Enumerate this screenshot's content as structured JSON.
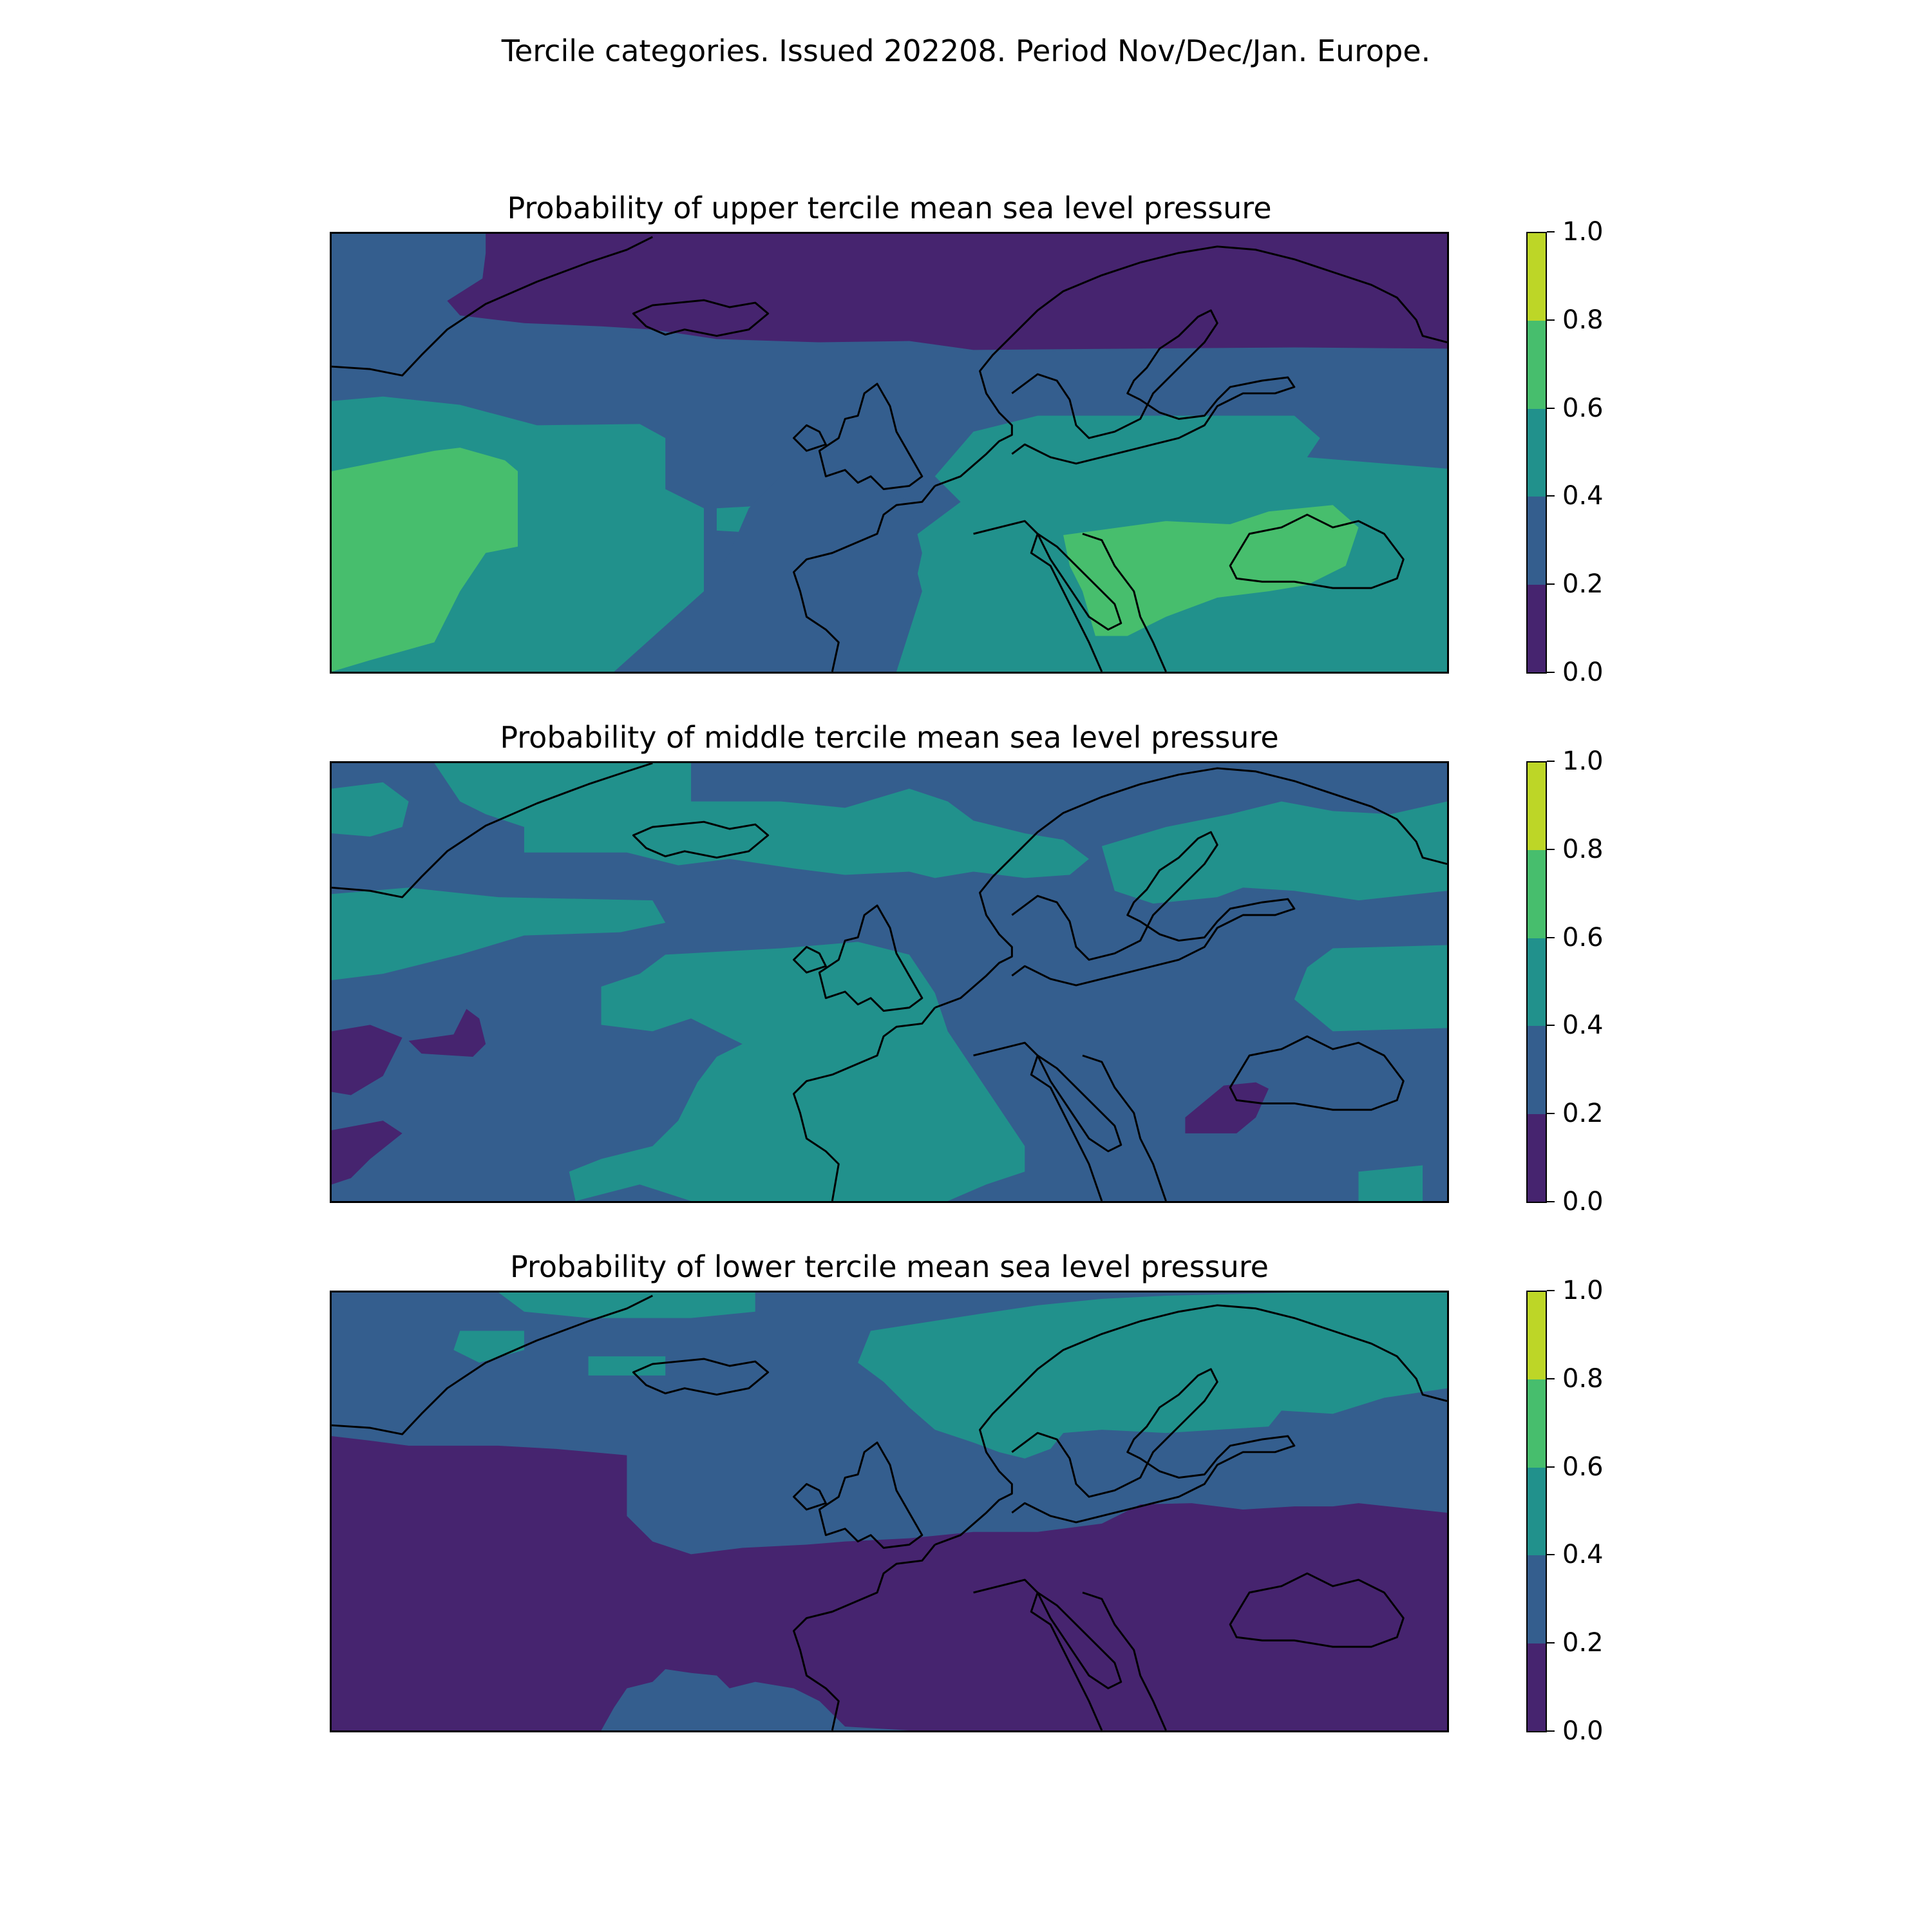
{
  "figure_title": "Tercile categories. Issued 202208. Period Nov/Dec/Jan. Europe.",
  "colorbar": {
    "levels": [
      0.0,
      0.2,
      0.4,
      0.6,
      0.8,
      1.0
    ],
    "tick_labels": [
      "0.0",
      "0.2",
      "0.4",
      "0.6",
      "0.8",
      "1.0"
    ],
    "colors": [
      "#46246f",
      "#345e8e",
      "#21918c",
      "#47be6d",
      "#bdd627"
    ]
  },
  "coastline_color": "#000000",
  "panels": [
    {
      "id": "upper",
      "title": "Probability of upper tercile mean sea level pressure",
      "regions": [
        {
          "name": "north-atlantic-band",
          "value_range": [
            0.2,
            0.4
          ]
        },
        {
          "name": "arctic-and-scandinavia",
          "value_range": [
            0.0,
            0.2
          ]
        },
        {
          "name": "central-atlantic-and-eastern-europe",
          "value_range": [
            0.4,
            0.6
          ]
        },
        {
          "name": "western-atlantic-high",
          "value_range": [
            0.6,
            0.8
          ]
        },
        {
          "name": "balkans-black-sea",
          "value_range": [
            0.6,
            0.8
          ]
        },
        {
          "name": "iberia-france-uk",
          "value_range": [
            0.2,
            0.4
          ]
        }
      ]
    },
    {
      "id": "middle",
      "title": "Probability of middle tercile mean sea level pressure",
      "regions": [
        {
          "name": "background",
          "value_range": [
            0.2,
            0.4
          ]
        },
        {
          "name": "northern-bands",
          "value_range": [
            0.4,
            0.6
          ]
        },
        {
          "name": "western-europe-iberia",
          "value_range": [
            0.4,
            0.6
          ]
        },
        {
          "name": "western-atlantic-lows",
          "value_range": [
            0.0,
            0.2
          ]
        },
        {
          "name": "black-sea-west",
          "value_range": [
            0.0,
            0.2
          ]
        }
      ]
    },
    {
      "id": "lower",
      "title": "Probability of lower tercile mean sea level pressure",
      "regions": [
        {
          "name": "northern-band",
          "value_range": [
            0.2,
            0.4
          ]
        },
        {
          "name": "scandinavia-and-north",
          "value_range": [
            0.4,
            0.6
          ]
        },
        {
          "name": "south-atlantic-and-mediterranean",
          "value_range": [
            0.0,
            0.2
          ]
        }
      ]
    }
  ]
}
